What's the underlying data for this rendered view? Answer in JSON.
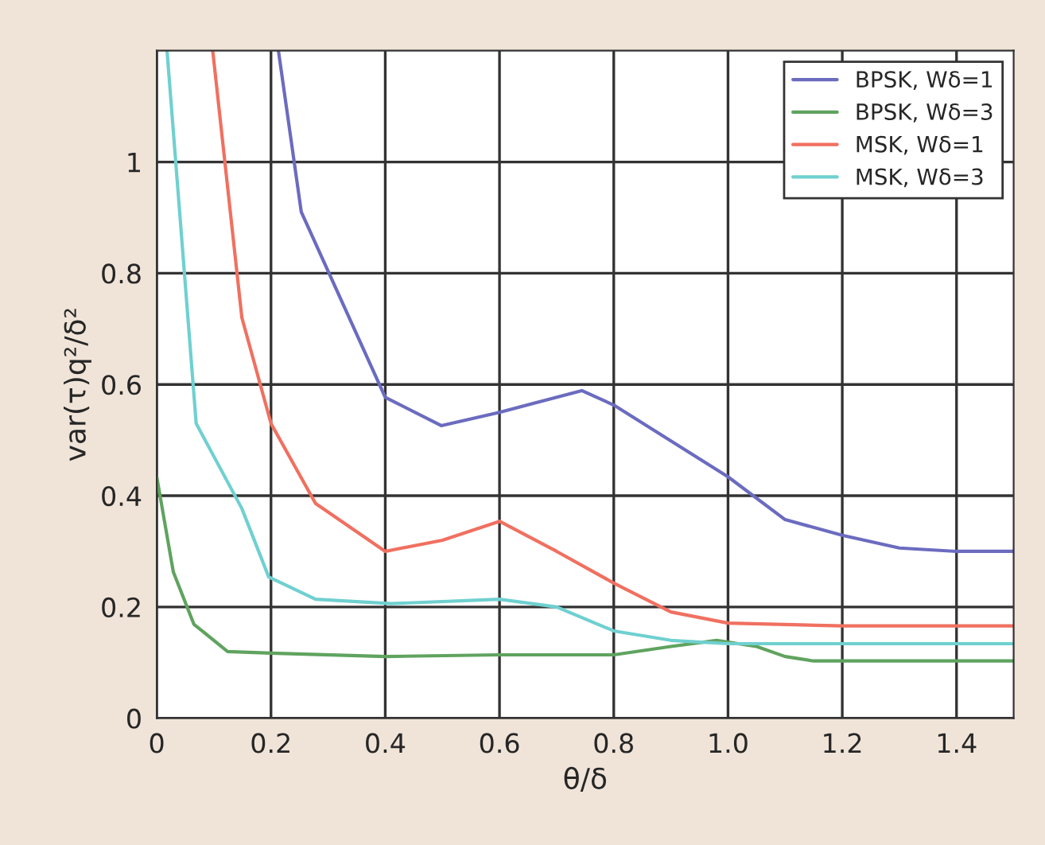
{
  "chart_data": {
    "type": "line",
    "xlabel": "θ/δ",
    "ylabel": "var(τ)q²/δ²",
    "xlim": [
      0,
      1.5
    ],
    "ylim": [
      0,
      1.2
    ],
    "xticks": [
      0,
      0.2,
      0.4,
      0.6,
      0.8,
      {
        "value": 1.0,
        "label": "1.0"
      },
      1.2,
      1.4
    ],
    "yticks": [
      0,
      0.2,
      0.4,
      0.6,
      0.8,
      1
    ],
    "grid": true,
    "legend": "top right",
    "line_style": "solid",
    "marker": "none",
    "series": [
      {
        "name": "BPSK, Wδ=1",
        "color": "#6b6bc0",
        "x": [
          0.213,
          0.253,
          0.4,
          0.498,
          0.6,
          0.744,
          0.8,
          1.0,
          1.1,
          1.2,
          1.3,
          1.4,
          1.5
        ],
        "values": [
          1.2,
          0.91,
          0.577,
          0.526,
          0.55,
          0.589,
          0.563,
          0.434,
          0.357,
          0.329,
          0.306,
          0.3,
          0.3
        ]
      },
      {
        "name": "BPSK, Wδ=3",
        "color": "#5fa35f",
        "x": [
          0,
          0.029,
          0.065,
          0.124,
          0.2,
          0.4,
          0.6,
          0.8,
          0.9,
          0.98,
          1.05,
          1.1,
          1.15,
          1.5
        ],
        "values": [
          0.434,
          0.263,
          0.169,
          0.12,
          0.117,
          0.111,
          0.114,
          0.114,
          0.129,
          0.14,
          0.129,
          0.111,
          0.103,
          0.103
        ]
      },
      {
        "name": "MSK, Wδ=1",
        "color": "#f07060",
        "x": [
          0.098,
          0.149,
          0.2,
          0.278,
          0.4,
          0.5,
          0.6,
          0.7,
          0.8,
          0.9,
          1.0,
          1.2,
          1.5
        ],
        "values": [
          1.2,
          0.72,
          0.53,
          0.386,
          0.3,
          0.32,
          0.354,
          0.3,
          0.243,
          0.191,
          0.171,
          0.166,
          0.166
        ]
      },
      {
        "name": "MSK, Wδ=3",
        "color": "#70d0d0",
        "x": [
          0.018,
          0.069,
          0.149,
          0.196,
          0.278,
          0.41,
          0.6,
          0.7,
          0.8,
          0.9,
          1.0,
          1.5
        ],
        "values": [
          1.2,
          0.53,
          0.377,
          0.254,
          0.214,
          0.206,
          0.214,
          0.2,
          0.157,
          0.14,
          0.134,
          0.134
        ]
      }
    ]
  }
}
